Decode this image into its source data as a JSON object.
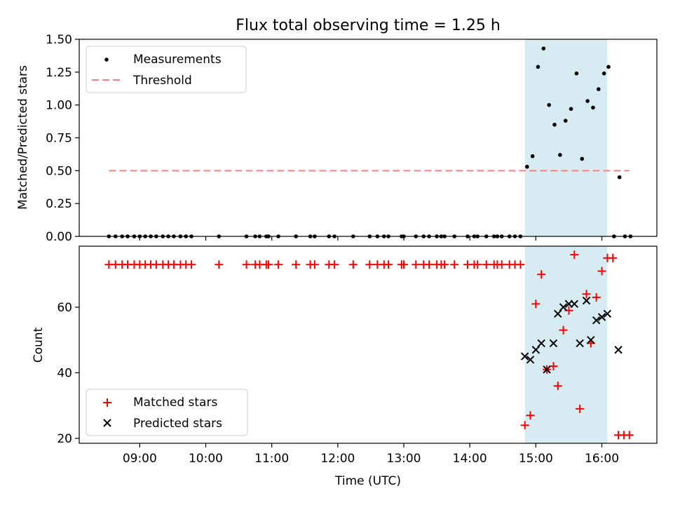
{
  "chart_data": [
    {
      "type": "scatter",
      "title": "Flux total observing time = 1.25 h",
      "ylabel": "Matched/Predicted stars",
      "ylim": [
        0,
        1.5
      ],
      "yticks": [
        "0.00",
        "0.25",
        "0.50",
        "0.75",
        "1.00",
        "1.25",
        "1.50"
      ],
      "xlim": [
        "08:05",
        "16:50"
      ],
      "legend": {
        "placement": "top-left",
        "entries": [
          "Measurements",
          "Threshold"
        ]
      },
      "highlight": {
        "x_start": "14:50",
        "x_end": "16:05",
        "color": "#add8e6"
      },
      "threshold": {
        "value": 0.5,
        "x_start": "08:32",
        "x_end": "16:25",
        "color": "#ff7f7f"
      },
      "series": [
        {
          "name": "Measurements",
          "color": "#000000",
          "points": [
            [
              "08:32",
              0
            ],
            [
              "08:38",
              0
            ],
            [
              "08:44",
              0
            ],
            [
              "08:49",
              0
            ],
            [
              "08:55",
              0
            ],
            [
              "09:00",
              0
            ],
            [
              "09:05",
              0
            ],
            [
              "09:10",
              0
            ],
            [
              "09:15",
              0
            ],
            [
              "09:21",
              0
            ],
            [
              "09:26",
              0
            ],
            [
              "09:31",
              0
            ],
            [
              "09:37",
              0
            ],
            [
              "09:42",
              0
            ],
            [
              "09:47",
              0
            ],
            [
              "10:12",
              0
            ],
            [
              "10:37",
              0
            ],
            [
              "10:45",
              0
            ],
            [
              "10:49",
              0
            ],
            [
              "10:55",
              0
            ],
            [
              "10:57",
              0
            ],
            [
              "11:06",
              0
            ],
            [
              "11:22",
              0
            ],
            [
              "11:35",
              0
            ],
            [
              "11:39",
              0
            ],
            [
              "11:52",
              0
            ],
            [
              "11:57",
              0
            ],
            [
              "12:14",
              0
            ],
            [
              "12:29",
              0
            ],
            [
              "12:36",
              0
            ],
            [
              "12:42",
              0
            ],
            [
              "12:46",
              0
            ],
            [
              "12:58",
              0
            ],
            [
              "13:00",
              0
            ],
            [
              "13:11",
              0
            ],
            [
              "13:18",
              0
            ],
            [
              "13:23",
              0
            ],
            [
              "13:30",
              0
            ],
            [
              "13:34",
              0
            ],
            [
              "13:37",
              0
            ],
            [
              "13:46",
              0
            ],
            [
              "13:58",
              0
            ],
            [
              "14:04",
              0
            ],
            [
              "14:07",
              0
            ],
            [
              "14:15",
              0
            ],
            [
              "14:22",
              0
            ],
            [
              "14:25",
              0
            ],
            [
              "14:29",
              0
            ],
            [
              "14:36",
              0
            ],
            [
              "14:41",
              0
            ],
            [
              "14:46",
              0
            ],
            [
              "14:52",
              0.53
            ],
            [
              "14:57",
              0.61
            ],
            [
              "15:02",
              1.29
            ],
            [
              "15:07",
              1.43
            ],
            [
              "15:12",
              1.0
            ],
            [
              "15:17",
              0.85
            ],
            [
              "15:22",
              0.62
            ],
            [
              "15:27",
              0.88
            ],
            [
              "15:32",
              0.97
            ],
            [
              "15:37",
              1.24
            ],
            [
              "15:42",
              0.59
            ],
            [
              "15:47",
              1.03
            ],
            [
              "15:52",
              0.98
            ],
            [
              "15:57",
              1.12
            ],
            [
              "16:02",
              1.24
            ],
            [
              "16:06",
              1.29
            ],
            [
              "16:11",
              0
            ],
            [
              "16:16",
              0.45
            ],
            [
              "16:21",
              0
            ],
            [
              "16:26",
              0
            ]
          ]
        }
      ]
    },
    {
      "type": "scatter",
      "xlabel": "Time (UTC)",
      "ylabel": "Count",
      "ylim": [
        18.5,
        78.6
      ],
      "yticks": [
        "20",
        "40",
        "60"
      ],
      "xlim": [
        "08:05",
        "16:50"
      ],
      "xticks": [
        "09:00",
        "10:00",
        "11:00",
        "12:00",
        "13:00",
        "14:00",
        "15:00",
        "16:00"
      ],
      "legend": {
        "placement": "bottom-left",
        "entries": [
          "Matched stars",
          "Predicted stars"
        ]
      },
      "highlight": {
        "x_start": "14:50",
        "x_end": "16:05",
        "color": "#add8e6"
      },
      "series": [
        {
          "name": "Matched stars",
          "color": "#ff0000",
          "marker": "+",
          "points": [
            [
              "08:32",
              73
            ],
            [
              "08:38",
              73
            ],
            [
              "08:44",
              73
            ],
            [
              "08:49",
              73
            ],
            [
              "08:55",
              73
            ],
            [
              "09:00",
              73
            ],
            [
              "09:05",
              73
            ],
            [
              "09:10",
              73
            ],
            [
              "09:15",
              73
            ],
            [
              "09:21",
              73
            ],
            [
              "09:26",
              73
            ],
            [
              "09:31",
              73
            ],
            [
              "09:37",
              73
            ],
            [
              "09:42",
              73
            ],
            [
              "09:47",
              73
            ],
            [
              "10:12",
              73
            ],
            [
              "10:37",
              73
            ],
            [
              "10:45",
              73
            ],
            [
              "10:49",
              73
            ],
            [
              "10:55",
              73
            ],
            [
              "10:57",
              73
            ],
            [
              "11:06",
              73
            ],
            [
              "11:22",
              73
            ],
            [
              "11:35",
              73
            ],
            [
              "11:39",
              73
            ],
            [
              "11:52",
              73
            ],
            [
              "11:57",
              73
            ],
            [
              "12:14",
              73
            ],
            [
              "12:29",
              73
            ],
            [
              "12:36",
              73
            ],
            [
              "12:42",
              73
            ],
            [
              "12:46",
              73
            ],
            [
              "12:58",
              73
            ],
            [
              "13:00",
              73
            ],
            [
              "13:11",
              73
            ],
            [
              "13:18",
              73
            ],
            [
              "13:23",
              73
            ],
            [
              "13:30",
              73
            ],
            [
              "13:34",
              73
            ],
            [
              "13:37",
              73
            ],
            [
              "13:46",
              73
            ],
            [
              "13:58",
              73
            ],
            [
              "14:04",
              73
            ],
            [
              "14:07",
              73
            ],
            [
              "14:15",
              73
            ],
            [
              "14:22",
              73
            ],
            [
              "14:25",
              73
            ],
            [
              "14:29",
              73
            ],
            [
              "14:36",
              73
            ],
            [
              "14:41",
              73
            ],
            [
              "14:46",
              73
            ],
            [
              "14:50",
              24
            ],
            [
              "14:55",
              27
            ],
            [
              "15:00",
              61
            ],
            [
              "15:05",
              70
            ],
            [
              "15:10",
              41
            ],
            [
              "15:16",
              42
            ],
            [
              "15:20",
              36
            ],
            [
              "15:25",
              53
            ],
            [
              "15:30",
              59
            ],
            [
              "15:35",
              76
            ],
            [
              "15:40",
              29
            ],
            [
              "15:46",
              64
            ],
            [
              "15:50",
              49
            ],
            [
              "15:55",
              63
            ],
            [
              "16:00",
              71
            ],
            [
              "16:05",
              75
            ],
            [
              "16:10",
              75
            ],
            [
              "16:15",
              21
            ],
            [
              "16:20",
              21
            ],
            [
              "16:25",
              21
            ]
          ]
        },
        {
          "name": "Predicted stars",
          "color": "#000000",
          "marker": "x",
          "points": [
            [
              "14:50",
              45
            ],
            [
              "14:55",
              44
            ],
            [
              "15:00",
              47
            ],
            [
              "15:05",
              49
            ],
            [
              "15:10",
              41
            ],
            [
              "15:16",
              49
            ],
            [
              "15:20",
              58
            ],
            [
              "15:25",
              60
            ],
            [
              "15:30",
              61
            ],
            [
              "15:35",
              61
            ],
            [
              "15:40",
              49
            ],
            [
              "15:46",
              62
            ],
            [
              "15:50",
              50
            ],
            [
              "15:55",
              56
            ],
            [
              "16:00",
              57
            ],
            [
              "16:05",
              58
            ],
            [
              "16:15",
              47
            ]
          ]
        }
      ]
    }
  ]
}
